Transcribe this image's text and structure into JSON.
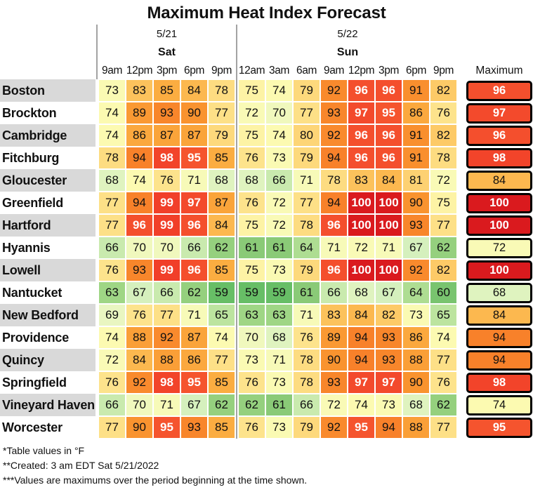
{
  "title": "Maximum Heat Index Forecast",
  "header": {
    "day_groups": [
      {
        "date": "5/21",
        "day": "Sat",
        "times": [
          "9am",
          "12pm",
          "3pm",
          "6pm",
          "9pm"
        ]
      },
      {
        "date": "5/22",
        "day": "Sun",
        "times": [
          "12am",
          "3am",
          "6am",
          "9am",
          "12pm",
          "3pm",
          "6pm",
          "9pm"
        ]
      }
    ],
    "max_label": "Maximum"
  },
  "chart_data": {
    "type": "heatmap",
    "title": "Maximum Heat Index Forecast",
    "units": "°F",
    "columns": [
      "Sat 9am",
      "Sat 12pm",
      "Sat 3pm",
      "Sat 6pm",
      "Sat 9pm",
      "Sun 12am",
      "Sun 3am",
      "Sun 6am",
      "Sun 9am",
      "Sun 12pm",
      "Sun 3pm",
      "Sun 6pm",
      "Sun 9pm"
    ],
    "rows": [
      {
        "city": "Boston",
        "values": [
          73,
          83,
          85,
          84,
          78,
          75,
          74,
          79,
          92,
          96,
          96,
          91,
          82
        ],
        "max": 96
      },
      {
        "city": "Brockton",
        "values": [
          74,
          89,
          93,
          90,
          77,
          72,
          70,
          77,
          93,
          97,
          95,
          86,
          76
        ],
        "max": 97
      },
      {
        "city": "Cambridge",
        "values": [
          74,
          86,
          87,
          87,
          79,
          75,
          74,
          80,
          92,
          96,
          96,
          91,
          82
        ],
        "max": 96
      },
      {
        "city": "Fitchburg",
        "values": [
          78,
          94,
          98,
          95,
          85,
          76,
          73,
          79,
          94,
          96,
          96,
          91,
          78
        ],
        "max": 98
      },
      {
        "city": "Gloucester",
        "values": [
          68,
          74,
          76,
          71,
          68,
          68,
          66,
          71,
          78,
          83,
          84,
          81,
          72
        ],
        "max": 84
      },
      {
        "city": "Greenfield",
        "values": [
          77,
          94,
          99,
          97,
          87,
          76,
          72,
          77,
          94,
          100,
          100,
          90,
          75
        ],
        "max": 100
      },
      {
        "city": "Hartford",
        "values": [
          77,
          96,
          99,
          96,
          84,
          75,
          72,
          78,
          96,
          100,
          100,
          93,
          77
        ],
        "max": 100
      },
      {
        "city": "Hyannis",
        "values": [
          66,
          70,
          70,
          66,
          62,
          61,
          61,
          64,
          71,
          72,
          71,
          67,
          62
        ],
        "max": 72
      },
      {
        "city": "Lowell",
        "values": [
          76,
          93,
          99,
          96,
          85,
          75,
          73,
          79,
          96,
          100,
          100,
          92,
          82
        ],
        "max": 100
      },
      {
        "city": "Nantucket",
        "values": [
          63,
          67,
          66,
          62,
          59,
          59,
          59,
          61,
          66,
          68,
          67,
          64,
          60
        ],
        "max": 68
      },
      {
        "city": "New Bedford",
        "values": [
          69,
          76,
          77,
          71,
          65,
          63,
          63,
          71,
          83,
          84,
          82,
          73,
          65
        ],
        "max": 84
      },
      {
        "city": "Providence",
        "values": [
          74,
          88,
          92,
          87,
          74,
          70,
          68,
          76,
          89,
          94,
          93,
          86,
          74
        ],
        "max": 94
      },
      {
        "city": "Quincy",
        "values": [
          72,
          84,
          88,
          86,
          77,
          73,
          71,
          78,
          90,
          94,
          93,
          88,
          77
        ],
        "max": 94
      },
      {
        "city": "Springfield",
        "values": [
          76,
          92,
          98,
          95,
          85,
          76,
          73,
          78,
          93,
          97,
          97,
          90,
          76
        ],
        "max": 98
      },
      {
        "city": "Vineyard Haven",
        "values": [
          66,
          70,
          71,
          67,
          62,
          62,
          61,
          66,
          72,
          74,
          73,
          68,
          62
        ],
        "max": 74
      },
      {
        "city": "Worcester",
        "values": [
          77,
          90,
          95,
          93,
          85,
          76,
          73,
          79,
          92,
          95,
          94,
          88,
          77
        ],
        "max": 95
      }
    ],
    "value_range": [
      59,
      100
    ],
    "white_text_min": 95,
    "color_scale": [
      {
        "value": 59,
        "color": "#67be66"
      },
      {
        "value": 61,
        "color": "#8aca77"
      },
      {
        "value": 63,
        "color": "#9fd685"
      },
      {
        "value": 65,
        "color": "#bce49f"
      },
      {
        "value": 67,
        "color": "#d5f0bd"
      },
      {
        "value": 69,
        "color": "#e9f6c1"
      },
      {
        "value": 71,
        "color": "#f7fab8"
      },
      {
        "value": 74,
        "color": "#fcfab1"
      },
      {
        "value": 75,
        "color": "#fdf3a5"
      },
      {
        "value": 76,
        "color": "#fde38c"
      },
      {
        "value": 79,
        "color": "#fdd97c"
      },
      {
        "value": 81,
        "color": "#fdd172"
      },
      {
        "value": 83,
        "color": "#fcc25c"
      },
      {
        "value": 85,
        "color": "#fbad41"
      },
      {
        "value": 88,
        "color": "#fa9f37"
      },
      {
        "value": 90,
        "color": "#f9932f"
      },
      {
        "value": 94,
        "color": "#f8812a"
      },
      {
        "value": 95,
        "color": "#f5542e"
      },
      {
        "value": 99,
        "color": "#f13f29"
      },
      {
        "value": 100,
        "color": "#da1a1e"
      }
    ]
  },
  "footnotes": [
    "*Table values in °F",
    "**Created: 3 am EDT Sat 5/21/2022",
    "***Values are maximums over the period beginning at the time shown."
  ],
  "colors": {
    "divider": "#a3a3a3",
    "row_band": "#d9d9d9",
    "max_border": "#000000",
    "cell_gap": "#ffffff"
  }
}
